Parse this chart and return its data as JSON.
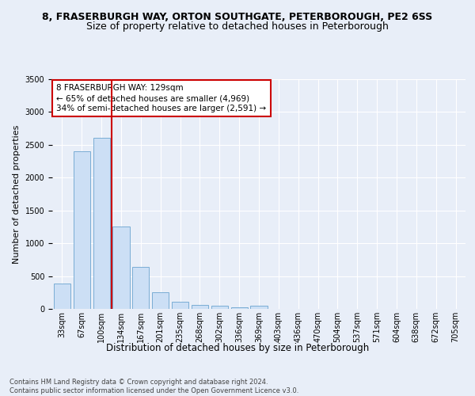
{
  "title_line1": "8, FRASERBURGH WAY, ORTON SOUTHGATE, PETERBOROUGH, PE2 6SS",
  "title_line2": "Size of property relative to detached houses in Peterborough",
  "xlabel": "Distribution of detached houses by size in Peterborough",
  "ylabel": "Number of detached properties",
  "categories": [
    "33sqm",
    "67sqm",
    "100sqm",
    "134sqm",
    "167sqm",
    "201sqm",
    "235sqm",
    "268sqm",
    "302sqm",
    "336sqm",
    "369sqm",
    "403sqm",
    "436sqm",
    "470sqm",
    "504sqm",
    "537sqm",
    "571sqm",
    "604sqm",
    "638sqm",
    "672sqm",
    "705sqm"
  ],
  "values": [
    390,
    2400,
    2610,
    1250,
    640,
    250,
    105,
    60,
    45,
    30,
    50,
    0,
    0,
    0,
    0,
    0,
    0,
    0,
    0,
    0,
    0
  ],
  "bar_color": "#ccdff5",
  "bar_edge_color": "#7aadd4",
  "vline_color": "#cc0000",
  "annotation_text": "8 FRASERBURGH WAY: 129sqm\n← 65% of detached houses are smaller (4,969)\n34% of semi-detached houses are larger (2,591) →",
  "annotation_box_color": "#ffffff",
  "annotation_box_edge": "#cc0000",
  "ylim": [
    0,
    3500
  ],
  "yticks": [
    0,
    500,
    1000,
    1500,
    2000,
    2500,
    3000,
    3500
  ],
  "background_color": "#e8eef8",
  "grid_color": "#ffffff",
  "footer_text": "Contains HM Land Registry data © Crown copyright and database right 2024.\nContains public sector information licensed under the Open Government Licence v3.0.",
  "title1_fontsize": 9,
  "title2_fontsize": 9,
  "xlabel_fontsize": 8.5,
  "ylabel_fontsize": 8,
  "tick_fontsize": 7,
  "annotation_fontsize": 7.5,
  "footer_fontsize": 6
}
